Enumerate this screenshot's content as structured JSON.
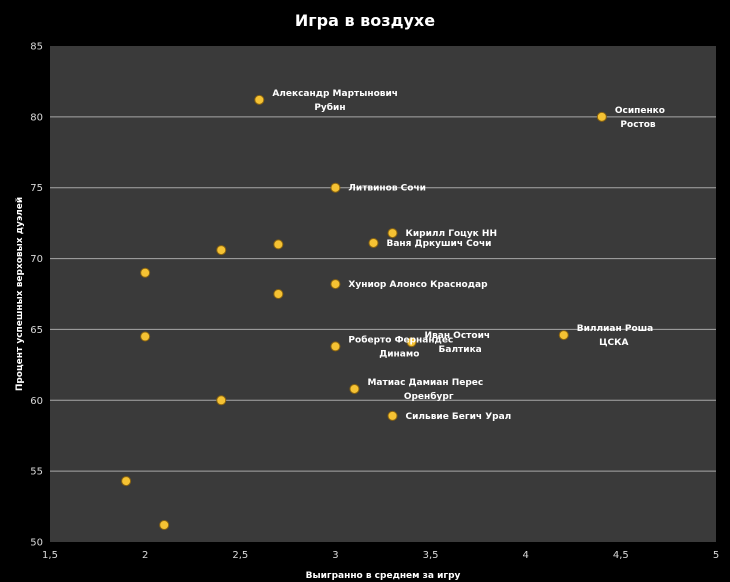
{
  "chart_data": {
    "type": "scatter",
    "title": "Игра в воздухе",
    "xlabel": "Выигранно  в среднем за игру",
    "ylabel": "Процент успешных верховых дуэлей",
    "xlim": [
      1.5,
      5
    ],
    "ylim": [
      50,
      85
    ],
    "xticks": [
      1.5,
      2,
      2.5,
      3,
      3.5,
      4,
      4.5,
      5
    ],
    "xtick_labels": [
      "1,5",
      "2",
      "2,5",
      "3",
      "3,5",
      "4",
      "4,5",
      "5"
    ],
    "yticks": [
      50,
      55,
      60,
      65,
      70,
      75,
      80,
      85
    ],
    "ytick_labels": [
      "50",
      "55",
      "60",
      "65",
      "70",
      "75",
      "80",
      "85"
    ],
    "grid": "horizontal",
    "colors": {
      "background": "#000000",
      "plot_area": "#3a3a3a",
      "grid": "#a8a8a8",
      "marker": "#f5c233",
      "marker_edge": "#8a6410",
      "text": "#ffffff"
    },
    "points": [
      {
        "x": 2.6,
        "y": 81.2,
        "label": [
          "Александр Мартынович",
          "Рубин"
        ]
      },
      {
        "x": 4.4,
        "y": 80.0,
        "label": [
          "Осипенко",
          "Ростов"
        ]
      },
      {
        "x": 3.0,
        "y": 75.0,
        "label": [
          "Литвинов Сочи"
        ]
      },
      {
        "x": 3.3,
        "y": 71.8,
        "label": [
          "Кирилл  Гоцук НН"
        ]
      },
      {
        "x": 3.2,
        "y": 71.1,
        "label": [
          "Ваня Дркушич Сочи"
        ]
      },
      {
        "x": 2.4,
        "y": 70.6,
        "label": []
      },
      {
        "x": 2.7,
        "y": 71.0,
        "label": []
      },
      {
        "x": 2.0,
        "y": 69.0,
        "label": []
      },
      {
        "x": 3.0,
        "y": 68.2,
        "label": [
          "Хуниор Алонсо Краснодар"
        ]
      },
      {
        "x": 2.7,
        "y": 67.5,
        "label": []
      },
      {
        "x": 2.0,
        "y": 64.5,
        "label": []
      },
      {
        "x": 4.2,
        "y": 64.6,
        "label": [
          "Виллиан Роша",
          "ЦСКА"
        ]
      },
      {
        "x": 3.4,
        "y": 64.1,
        "label": [
          "Иван  Остоич",
          "Балтика"
        ]
      },
      {
        "x": 3.0,
        "y": 63.8,
        "label": [
          "Роберто Фернандес",
          "Динамо"
        ]
      },
      {
        "x": 3.1,
        "y": 60.8,
        "label": [
          "Матиас  Дамиан  Перес",
          "Оренбург"
        ]
      },
      {
        "x": 2.4,
        "y": 60.0,
        "label": []
      },
      {
        "x": 3.3,
        "y": 58.9,
        "label": [
          "Сильвие  Бегич Урал"
        ]
      },
      {
        "x": 1.9,
        "y": 54.3,
        "label": []
      },
      {
        "x": 2.1,
        "y": 51.2,
        "label": []
      }
    ]
  }
}
